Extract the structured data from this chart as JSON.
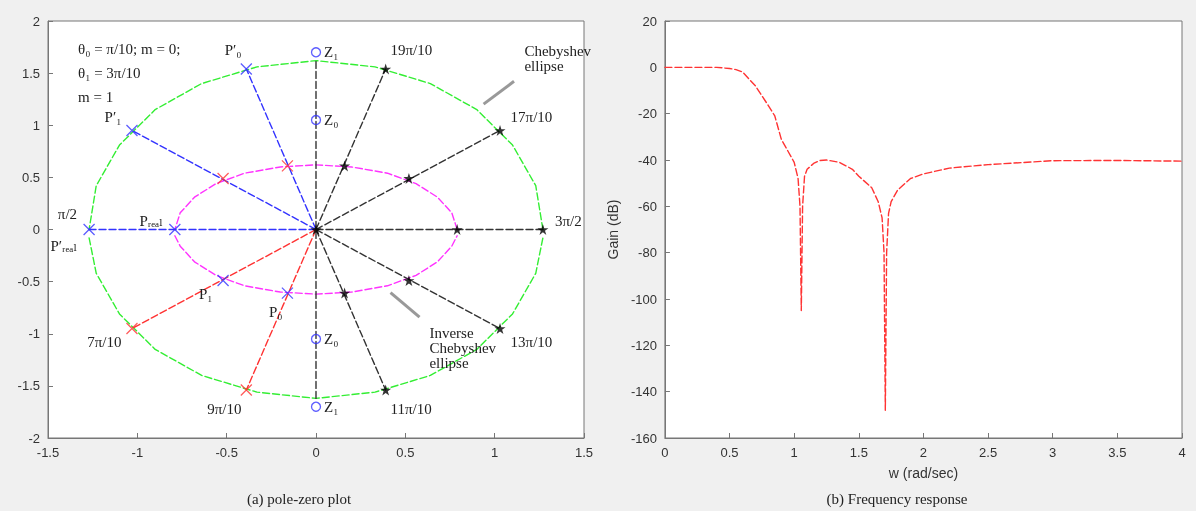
{
  "chart_data": [
    {
      "type": "scatter",
      "title": "(a) pole-zero plot",
      "xlim": [
        -1.5,
        1.5
      ],
      "ylim": [
        -2,
        2
      ],
      "xticks": [
        -1.5,
        -1,
        -0.5,
        0,
        0.5,
        1,
        1.5
      ],
      "yticks": [
        -2,
        -1.5,
        -1,
        -0.5,
        0,
        0.5,
        1,
        1.5,
        2
      ],
      "series": [
        {
          "type": "line",
          "color": "#33ee33",
          "line_style": "dashed",
          "marker": "none",
          "x": [
            1.27,
            1.23,
            1.1,
            0.9,
            0.64,
            0.33,
            0,
            -0.33,
            -0.64,
            -0.9,
            -1.1,
            -1.23,
            -1.27
          ],
          "values": [
            0,
            0.42,
            0.81,
            1.15,
            1.4,
            1.56,
            1.62,
            1.56,
            1.4,
            1.15,
            0.81,
            0.42,
            0
          ]
        },
        {
          "type": "line",
          "color": "#33ee33",
          "line_style": "dashed",
          "marker": "none",
          "x": [
            -1.27,
            -1.23,
            -1.1,
            -0.9,
            -0.64,
            -0.33,
            0,
            0.33,
            0.64,
            0.9,
            1.1,
            1.23,
            1.27
          ],
          "values": [
            -0.08,
            -0.42,
            -0.81,
            -1.15,
            -1.4,
            -1.56,
            -1.62,
            -1.56,
            -1.4,
            -1.15,
            -0.81,
            -0.42,
            -0.08
          ]
        },
        {
          "type": "line",
          "color": "#ff33ff",
          "line_style": "dashed",
          "marker": "none",
          "x": [
            0.79,
            0.76,
            0.68,
            0.56,
            0.4,
            0.2,
            0,
            -0.2,
            -0.4,
            -0.56,
            -0.68,
            -0.76,
            -0.79
          ],
          "values": [
            0,
            0.16,
            0.31,
            0.44,
            0.54,
            0.6,
            0.62,
            0.6,
            0.54,
            0.44,
            0.31,
            0.16,
            0
          ]
        },
        {
          "type": "line",
          "color": "#ff33ff",
          "line_style": "dashed",
          "marker": "none",
          "x": [
            -0.79,
            -0.76,
            -0.68,
            -0.56,
            -0.4,
            -0.2,
            0,
            0.2,
            0.4,
            0.56,
            0.68,
            0.76,
            0.79
          ],
          "values": [
            -0.06,
            -0.16,
            -0.31,
            -0.44,
            -0.54,
            -0.6,
            -0.62,
            -0.6,
            -0.54,
            -0.44,
            -0.31,
            -0.16,
            -0.06
          ]
        },
        {
          "type": "line",
          "color": "#3333ff",
          "line_style": "dashed",
          "marker": "none",
          "x": [
            0,
            -0.39
          ],
          "values": [
            0,
            1.54
          ]
        },
        {
          "type": "line",
          "color": "#3333ff",
          "line_style": "dashed",
          "marker": "none",
          "x": [
            0,
            -1.03
          ],
          "values": [
            0,
            0.95
          ]
        },
        {
          "type": "line",
          "color": "#3333ff",
          "line_style": "dashed",
          "marker": "none",
          "x": [
            0,
            -1.27
          ],
          "values": [
            0,
            0
          ]
        },
        {
          "type": "line",
          "color": "#ff3333",
          "line_style": "dashed",
          "marker": "none",
          "x": [
            0,
            -1.03
          ],
          "values": [
            0,
            -0.95
          ]
        },
        {
          "type": "line",
          "color": "#ff3333",
          "line_style": "dashed",
          "marker": "none",
          "x": [
            0,
            -0.39
          ],
          "values": [
            0,
            -1.54
          ]
        },
        {
          "type": "line",
          "color": "#333333",
          "line_style": "dashed",
          "marker": "none",
          "x": [
            0,
            0.39
          ],
          "values": [
            0,
            1.54
          ]
        },
        {
          "type": "line",
          "color": "#333333",
          "line_style": "dashed",
          "marker": "none",
          "x": [
            0,
            1.03
          ],
          "values": [
            0,
            0.95
          ]
        },
        {
          "type": "line",
          "color": "#333333",
          "line_style": "dashed",
          "marker": "none",
          "x": [
            0,
            1.27
          ],
          "values": [
            0,
            0
          ]
        },
        {
          "type": "line",
          "color": "#333333",
          "line_style": "dashed",
          "marker": "none",
          "x": [
            0,
            1.03
          ],
          "values": [
            0,
            -0.95
          ]
        },
        {
          "type": "line",
          "color": "#333333",
          "line_style": "dashed",
          "marker": "none",
          "x": [
            0,
            0.39
          ],
          "values": [
            0,
            -1.54
          ]
        },
        {
          "type": "line",
          "color": "#333333",
          "line_style": "dashed",
          "marker": "none",
          "x": [
            0,
            0
          ],
          "values": [
            -1.62,
            1.62
          ]
        },
        {
          "color": "#3333ff",
          "marker": "cross",
          "x": [
            -0.39,
            -1.03,
            -1.27,
            -0.79,
            -0.52,
            -0.16
          ],
          "values": [
            1.54,
            0.95,
            0,
            0,
            -0.49,
            -0.61
          ]
        },
        {
          "color": "#ff3333",
          "marker": "cross",
          "x": [
            -1.03,
            -0.39,
            -0.52,
            -0.16
          ],
          "values": [
            -0.95,
            -1.54,
            0.49,
            0.61
          ]
        },
        {
          "color": "#000000",
          "marker": "star",
          "x": [
            0.39,
            1.03,
            1.27,
            1.03,
            0.39,
            0.16,
            0.52,
            0.79,
            0.52,
            0.16,
            0
          ],
          "values": [
            1.54,
            0.95,
            0,
            -0.95,
            -1.54,
            0.61,
            0.49,
            0,
            -0.49,
            -0.61,
            0
          ]
        },
        {
          "color": "#3333ff",
          "marker": "circle",
          "x": [
            0,
            0,
            0,
            0
          ],
          "values": [
            1.7,
            1.05,
            -1.05,
            -1.7
          ]
        }
      ],
      "annotations": [
        "θ₀ = π/10; m = 0;",
        "θ₁ = 3π/10",
        "m = 1",
        {
          "text": "P′₀",
          "x": -0.39,
          "y": 1.54
        },
        {
          "text": "P′₁",
          "x": -1.03,
          "y": 0.95
        },
        {
          "text": "π/2",
          "x": -1.27,
          "y": 0
        },
        {
          "text": "P′ᵣₑₐₗ",
          "x": -1.27,
          "y": 0
        },
        {
          "text": "Pᵣₑₐₗ",
          "x": -0.79,
          "y": 0
        },
        {
          "text": "P₁",
          "x": -0.52,
          "y": -0.49
        },
        {
          "text": "P₀",
          "x": -0.16,
          "y": -0.61
        },
        {
          "text": "7π/10",
          "x": -1.03,
          "y": -0.95
        },
        {
          "text": "9π/10",
          "x": -0.39,
          "y": -1.54
        },
        {
          "text": "Z₁",
          "x": 0,
          "y": 1.7
        },
        {
          "text": "Z₀",
          "x": 0,
          "y": 1.05
        },
        {
          "text": "Z₀",
          "x": 0,
          "y": -1.05
        },
        {
          "text": "Z₁",
          "x": 0,
          "y": -1.7
        },
        {
          "text": "19π/10",
          "x": 0.39,
          "y": 1.54
        },
        {
          "text": "17π/10",
          "x": 1.03,
          "y": 0.95
        },
        {
          "text": "3π/2",
          "x": 1.27,
          "y": 0
        },
        {
          "text": "13π/10",
          "x": 1.03,
          "y": -0.95
        },
        {
          "text": "11π/10",
          "x": 0.39,
          "y": -1.54
        },
        {
          "text": "Chebyshev ellipse",
          "x": 0.92,
          "y": 1.18
        },
        {
          "text": "Inverse Chebyshev ellipse",
          "x": 0.4,
          "y": -0.58
        }
      ]
    },
    {
      "type": "line",
      "title": "(b) Frequency response",
      "xlabel": "w (rad/sec)",
      "ylabel": "Gain (dB)",
      "xlim": [
        0,
        4
      ],
      "ylim": [
        -160,
        20
      ],
      "xticks": [
        0,
        0.5,
        1,
        1.5,
        2,
        2.5,
        3,
        3.5,
        4
      ],
      "yticks": [
        -160,
        -140,
        -120,
        -100,
        -80,
        -60,
        -40,
        -20,
        0,
        20
      ],
      "line_style": "dashed",
      "marker": "none",
      "series": [
        {
          "color": "#ff3333",
          "x": [
            0,
            0.2,
            0.4,
            0.5,
            0.55,
            0.6,
            0.7,
            0.8,
            0.85,
            0.9,
            0.95,
            1.0,
            1.03,
            1.045,
            1.055,
            1.065,
            1.08,
            1.1,
            1.15,
            1.2,
            1.25,
            1.35,
            1.4,
            1.45,
            1.5,
            1.6,
            1.65,
            1.68,
            1.695,
            1.705,
            1.715,
            1.73,
            1.75,
            1.8,
            1.9,
            2.0,
            2.2,
            2.5,
            3.0,
            3.5,
            4.0
          ],
          "values": [
            0,
            0,
            0,
            -0.5,
            -1,
            -2,
            -8,
            -16.5,
            -21,
            -31,
            -36,
            -41,
            -48,
            -60,
            -105,
            -60,
            -47,
            -44,
            -41.5,
            -40.2,
            -40,
            -41,
            -42.5,
            -44,
            -47,
            -52,
            -58,
            -65,
            -80,
            -148,
            -80,
            -63,
            -58,
            -53,
            -48,
            -46,
            -43.5,
            -42,
            -40.3,
            -40.2,
            -40.5
          ]
        }
      ]
    }
  ]
}
